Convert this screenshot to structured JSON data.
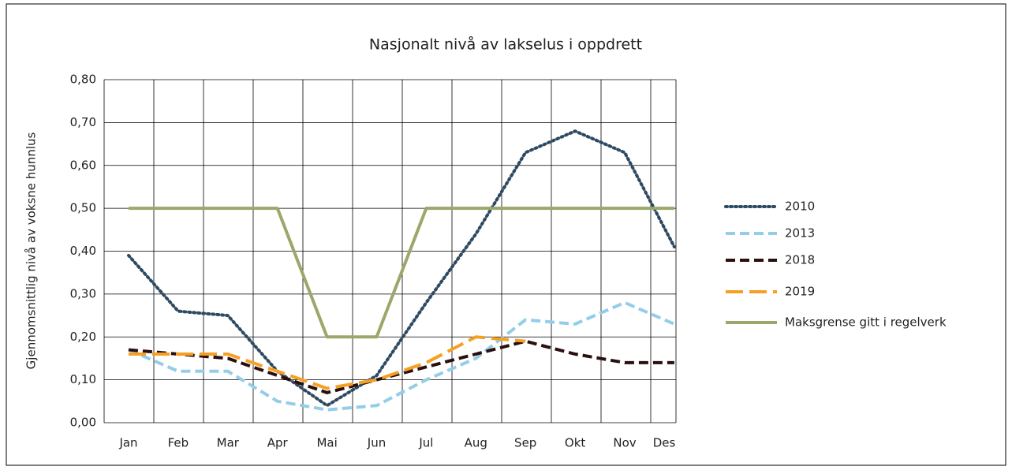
{
  "chart_data": {
    "type": "line",
    "title": "Nasjonalt nivå av lakselus i oppdrett",
    "y_label": "Gjennomsnittlig nivå av voksne hunnlus",
    "categories": [
      "Jan",
      "Feb",
      "Mar",
      "Apr",
      "Mai",
      "Jun",
      "Jul",
      "Aug",
      "Sep",
      "Okt",
      "Nov",
      "Des"
    ],
    "ylim": [
      0,
      0.8
    ],
    "yticks": [
      {
        "value": 0,
        "label": "0,00"
      },
      {
        "value": 0.1,
        "label": "0,10"
      },
      {
        "value": 0.2,
        "label": "0,20"
      },
      {
        "value": 0.3,
        "label": "0,30"
      },
      {
        "value": 0.4,
        "label": "0,40"
      },
      {
        "value": 0.5,
        "label": "0,50"
      },
      {
        "value": 0.6,
        "label": "0,60"
      },
      {
        "value": 0.7,
        "label": "0,70"
      },
      {
        "value": 0.8,
        "label": "0,80"
      }
    ],
    "grid": true,
    "legend": "right",
    "series": [
      {
        "name": "2010",
        "color": "#2e4a62",
        "style": "dotted",
        "values": [
          0.39,
          0.26,
          0.25,
          0.12,
          0.04,
          0.11,
          0.28,
          0.44,
          0.63,
          0.68,
          0.63,
          0.41
        ]
      },
      {
        "name": "2013",
        "color": "#93cde8",
        "style": "dashed",
        "values": [
          0.17,
          0.12,
          0.12,
          0.05,
          0.03,
          0.04,
          0.1,
          0.15,
          0.24,
          0.23,
          0.28,
          0.23
        ]
      },
      {
        "name": "2018",
        "color": "#2a0f0f",
        "style": "dashed",
        "values": [
          0.17,
          0.16,
          0.15,
          0.11,
          0.07,
          0.1,
          0.13,
          0.16,
          0.19,
          0.16,
          0.14,
          0.14
        ]
      },
      {
        "name": "2019",
        "color": "#f5a023",
        "style": "longdash",
        "values": [
          0.16,
          0.16,
          0.16,
          0.12,
          0.08,
          0.1,
          0.14,
          0.2,
          0.19,
          null,
          null,
          null
        ]
      },
      {
        "name": "Maksgrense gitt i regelverk",
        "color": "#9aa86a",
        "style": "solid",
        "values": [
          0.5,
          0.5,
          0.5,
          0.5,
          0.2,
          0.2,
          0.5,
          0.5,
          0.5,
          0.5,
          0.5,
          0.5
        ]
      }
    ]
  }
}
